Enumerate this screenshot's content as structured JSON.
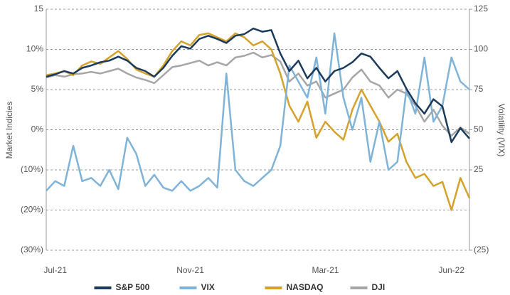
{
  "chart_data": {
    "type": "line",
    "y_label": "Market Indicies",
    "y2_label": "Volatility (VIX)",
    "categories": [
      null,
      "Jul-21",
      null,
      null,
      null,
      null,
      null,
      null,
      null,
      null,
      null,
      null,
      null,
      null,
      null,
      null,
      "Nov-21",
      null,
      null,
      null,
      null,
      null,
      null,
      null,
      null,
      null,
      null,
      null,
      null,
      null,
      null,
      "Mar-21",
      null,
      null,
      null,
      null,
      null,
      null,
      null,
      null,
      null,
      null,
      null,
      null,
      null,
      "Jun-22",
      null,
      null
    ],
    "ylim": [
      -30,
      15
    ],
    "yticks": [
      15,
      {
        "value": 10,
        "label": "10%"
      },
      {
        "value": 5,
        "label": "5%"
      },
      {
        "value": 0,
        "label": "0%"
      },
      {
        "value": -10,
        "label": "(10%)"
      },
      {
        "value": -20,
        "label": "(20%)"
      },
      {
        "value": -30,
        "label": "(30%)"
      }
    ],
    "y2lim": [
      -25,
      125
    ],
    "y2ticks": [
      125,
      100,
      75,
      50,
      25,
      {
        "value": -25,
        "label": "(25)"
      }
    ],
    "grid": true,
    "legend": "bottom",
    "series": [
      {
        "name": "S&P 500",
        "color": "#1b3a5c",
        "values": [
          6.6,
          6.9,
          7.3,
          7.0,
          7.7,
          8.0,
          8.4,
          8.6,
          9.1,
          8.6,
          7.7,
          7.3,
          6.6,
          7.7,
          9.2,
          10.4,
          10.1,
          11.3,
          11.7,
          11.3,
          10.8,
          11.7,
          11.9,
          12.6,
          12.2,
          12.4,
          9.5,
          7.3,
          8.6,
          6.4,
          7.7,
          6.0,
          7.3,
          7.7,
          8.4,
          9.5,
          9.1,
          7.7,
          6.4,
          7.3,
          5.1,
          3.3,
          2.0,
          3.8,
          2.9,
          -3.1,
          0.2,
          -2.2
        ]
      },
      {
        "name": "VIX",
        "color": "#7fb3d8",
        "axis": "y2",
        "values": [
          12,
          18,
          15,
          40,
          18,
          20,
          15,
          25,
          13,
          45,
          35,
          15,
          22,
          14,
          12,
          18,
          12,
          15,
          20,
          14,
          85,
          25,
          18,
          15,
          20,
          25,
          40,
          90,
          80,
          70,
          95,
          60,
          110,
          70,
          50,
          70,
          30,
          55,
          25,
          30,
          75,
          60,
          95,
          55,
          65,
          95,
          80,
          75
        ]
      },
      {
        "name": "NASDAQ",
        "color": "#d4a12a",
        "values": [
          6.8,
          7.0,
          7.3,
          6.8,
          8.0,
          8.5,
          8.2,
          9.0,
          9.8,
          8.8,
          7.5,
          7.0,
          6.6,
          8.0,
          9.8,
          11.0,
          10.5,
          11.8,
          12.0,
          11.5,
          11.0,
          12.0,
          11.5,
          10.5,
          11.0,
          10.0,
          7.0,
          3.0,
          1.0,
          3.5,
          -2.0,
          1.0,
          -0.5,
          -2.5,
          2.5,
          5.0,
          3.0,
          1.0,
          -3.0,
          -1.0,
          -8.0,
          -12.0,
          -11.0,
          -14.0,
          -13.0,
          -20.0,
          -12.0,
          -17.0
        ]
      },
      {
        "name": "DJI",
        "color": "#a6a6a6",
        "values": [
          6.5,
          6.8,
          6.6,
          6.9,
          7.0,
          7.2,
          7.0,
          7.3,
          7.6,
          7.0,
          6.5,
          6.2,
          5.8,
          6.8,
          7.8,
          8.0,
          8.3,
          8.6,
          8.0,
          8.4,
          8.0,
          9.0,
          9.2,
          9.6,
          9.0,
          9.3,
          8.5,
          6.0,
          7.0,
          5.5,
          6.0,
          4.0,
          4.5,
          5.0,
          6.5,
          7.5,
          6.0,
          5.5,
          4.0,
          5.0,
          4.5,
          3.0,
          1.0,
          2.5,
          0.5,
          -1.5,
          0.3,
          -1.0
        ]
      }
    ]
  }
}
